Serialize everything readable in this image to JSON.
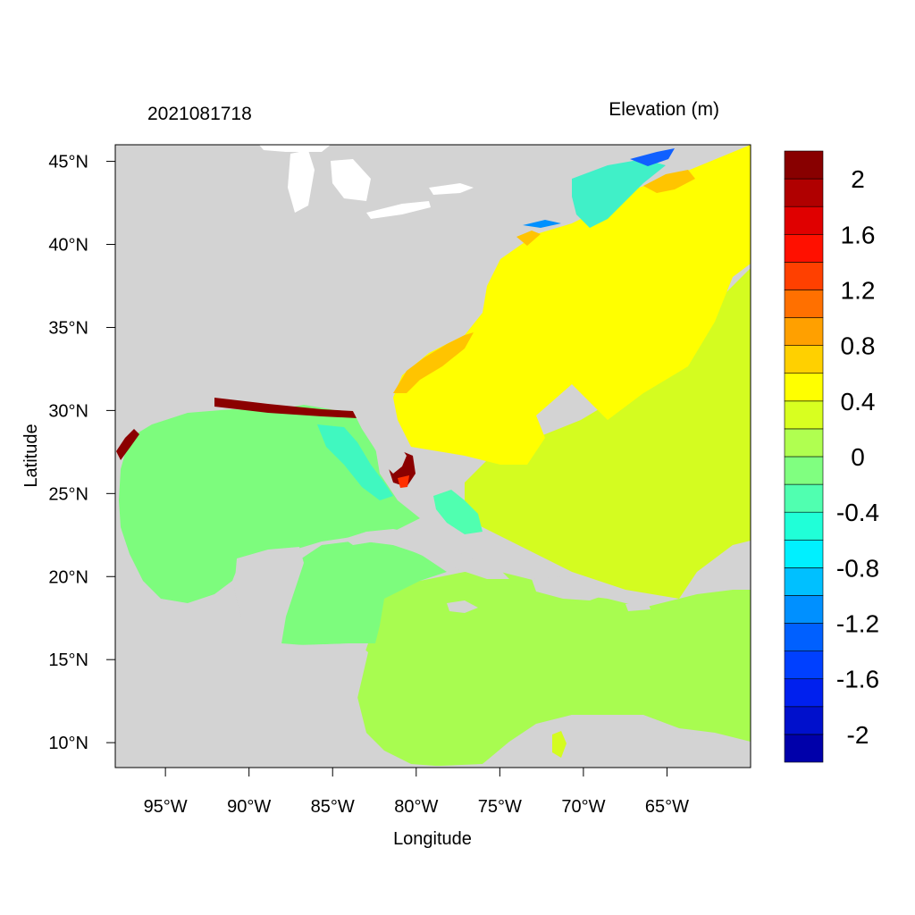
{
  "header": {
    "timestamp": "2021081718",
    "variable_title": "Elevation (m)"
  },
  "axes": {
    "x_label": "Longitude",
    "y_label": "Latitude",
    "x_ticks": [
      {
        "value": -95,
        "label": "95°W"
      },
      {
        "value": -90,
        "label": "90°W"
      },
      {
        "value": -85,
        "label": "85°W"
      },
      {
        "value": -80,
        "label": "80°W"
      },
      {
        "value": -75,
        "label": "75°W"
      },
      {
        "value": -70,
        "label": "70°W"
      },
      {
        "value": -65,
        "label": "65°W"
      }
    ],
    "y_ticks": [
      {
        "value": 10,
        "label": "10°N"
      },
      {
        "value": 15,
        "label": "15°N"
      },
      {
        "value": 20,
        "label": "20°N"
      },
      {
        "value": 25,
        "label": "25°N"
      },
      {
        "value": 30,
        "label": "30°N"
      },
      {
        "value": 35,
        "label": "35°N"
      },
      {
        "value": 40,
        "label": "40°N"
      },
      {
        "value": 45,
        "label": "45°N"
      }
    ],
    "lon_range": [
      -98,
      -60
    ],
    "lat_range": [
      8.5,
      46
    ]
  },
  "colorbar": {
    "colors": [
      "#0000aa",
      "#0010cc",
      "#0020ee",
      "#0040ff",
      "#0060ff",
      "#0090ff",
      "#00c0ff",
      "#00f0ff",
      "#20ffd8",
      "#50ffb0",
      "#80ff80",
      "#b0ff50",
      "#d8ff20",
      "#ffff00",
      "#ffd000",
      "#ffa000",
      "#ff7000",
      "#ff4000",
      "#ff1000",
      "#e00000",
      "#b00000",
      "#880000"
    ],
    "labels": [
      "2",
      "1.6",
      "1.2",
      "0.8",
      "0.4",
      "0",
      "-0.4",
      "-0.8",
      "-1.2",
      "-1.6",
      "-2"
    ]
  },
  "colors": {
    "land": "#d3d3d3",
    "gulf": "#7dfc7d",
    "caribbean": "#a8fc50",
    "atlantic_south": "#d4fc20",
    "atlantic_north": "#ffff00",
    "coastal_surge": "#ffc400",
    "extreme": "#8b0000",
    "cyan_shelf": "#30ffd0"
  }
}
